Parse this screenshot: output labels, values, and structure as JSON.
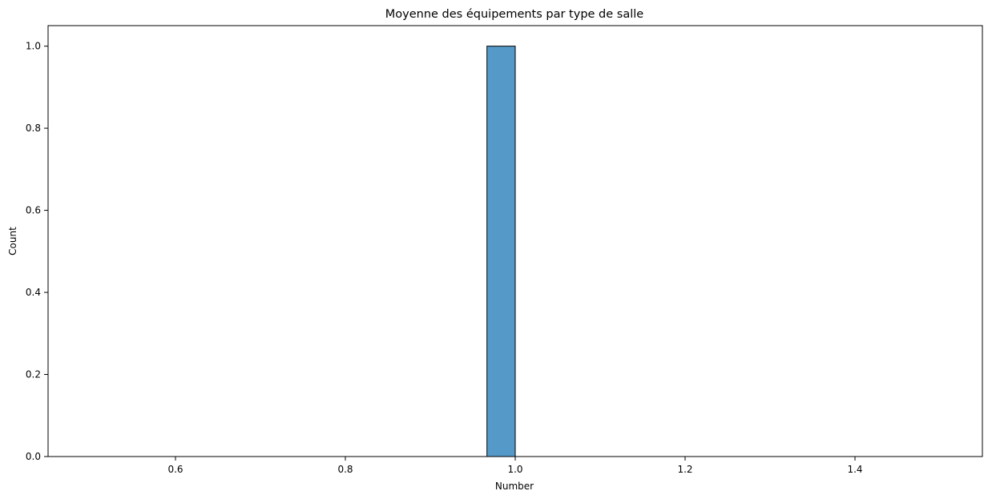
{
  "chart_data": {
    "type": "bar",
    "title": "Moyenne des équipements par type de salle",
    "xlabel": "Number",
    "ylabel": "Count",
    "xlim": [
      0.45,
      1.55
    ],
    "ylim": [
      0,
      1.05
    ],
    "xticks": [
      0.6,
      0.8,
      1.0,
      1.2,
      1.4
    ],
    "xtick_labels": [
      "0.6",
      "0.8",
      "1.0",
      "1.2",
      "1.4"
    ],
    "yticks": [
      0.0,
      0.2,
      0.4,
      0.6,
      0.8,
      1.0
    ],
    "ytick_labels": [
      "0.0",
      "0.2",
      "0.4",
      "0.6",
      "0.8",
      "1.0"
    ],
    "bin_range": [
      0.5,
      1.5
    ],
    "bins": 30,
    "bars": [
      {
        "x0": 0.9667,
        "x1": 1.0,
        "count": 1
      }
    ],
    "grid": false,
    "colors": {
      "bar_fill": "#5499c7",
      "bar_edge": "#000000",
      "axes": "#000000"
    }
  }
}
